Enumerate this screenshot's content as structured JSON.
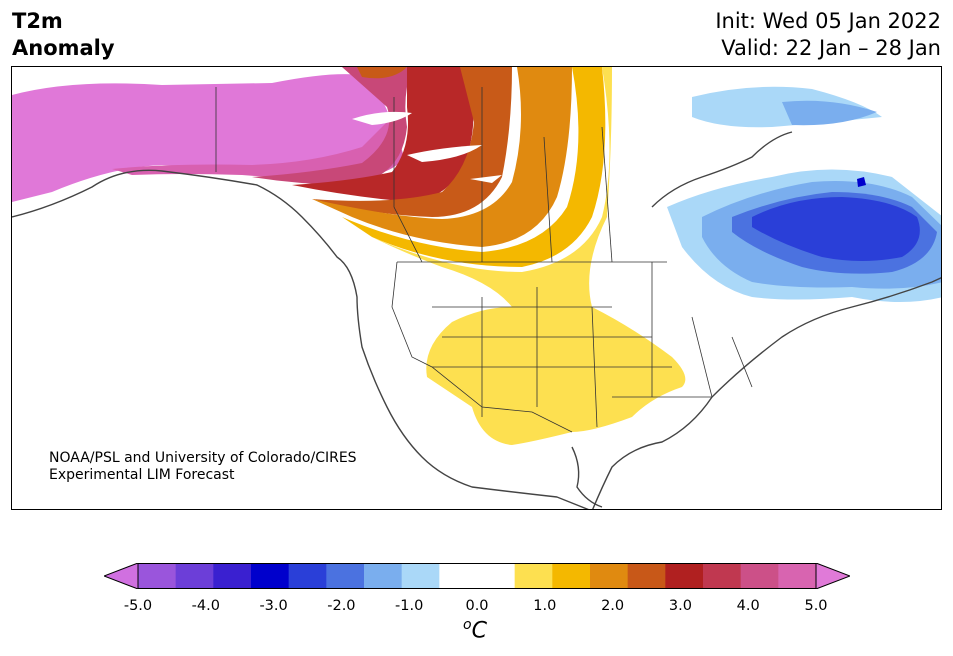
{
  "header": {
    "title_line1": "T2m",
    "title_line2": "Anomaly",
    "init_text": "Init: Wed 05 Jan 2022",
    "valid_text": "Valid: 22 Jan – 28 Jan"
  },
  "credit": {
    "line1": "NOAA/PSL and University of Colorado/CIRES",
    "line2": "Experimental LIM Forecast"
  },
  "colorbar": {
    "colors": [
      "#d070e0",
      "#9a55dc",
      "#6c3ed8",
      "#3a20d0",
      "#0000cc",
      "#2a3fd8",
      "#4b72e0",
      "#7aaeee",
      "#aad8f8",
      "#ffffff",
      "#ffffff",
      "#fde050",
      "#f4b800",
      "#e08a10",
      "#c85818",
      "#b02020",
      "#c03850",
      "#cc5088",
      "#d864b0",
      "#e07ad8"
    ],
    "ticks": [
      "-5.0",
      "-4.0",
      "-3.0",
      "-2.0",
      "-1.0",
      "0.0",
      "1.0",
      "2.0",
      "3.0",
      "4.0",
      "5.0"
    ],
    "unit_sup": "o",
    "unit": "C"
  },
  "map_colors": {
    "magenta": "#e078d8",
    "pink": "#d860b0",
    "rose": "#c84878",
    "red": "#b82828",
    "dark_orange": "#c85a18",
    "orange": "#e08a10",
    "gold": "#f4b800",
    "yellow": "#fde050",
    "light_blue": "#aad8f8",
    "mid_blue": "#7aaeee",
    "blue": "#4b72e0",
    "deep_blue": "#2a3fd8",
    "navy": "#0000cc",
    "coast": "#444444"
  }
}
